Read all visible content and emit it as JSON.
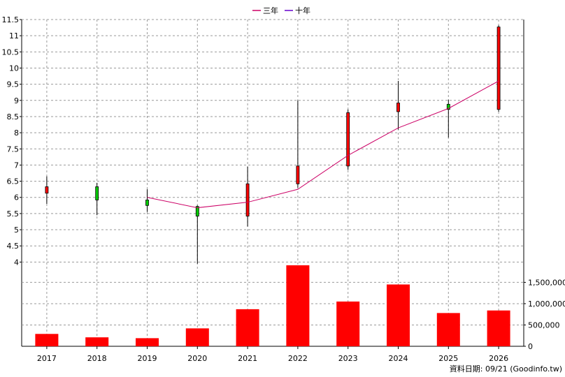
{
  "chart_data": {
    "type": "candlestick+line+bar",
    "legend": [
      {
        "name": "三年",
        "color": "#cc0066"
      },
      {
        "name": "十年",
        "color": "#6600cc"
      }
    ],
    "legend_position": "top-center",
    "grid": true,
    "categories": [
      "2017",
      "2018",
      "2019",
      "2020",
      "2021",
      "2022",
      "2023",
      "2024",
      "2025",
      "2026"
    ],
    "price_axis": {
      "ylim": [
        3.9,
        11.5
      ],
      "ticks": [
        "4",
        "4.5",
        "5",
        "5.5",
        "6",
        "6.5",
        "7",
        "7.5",
        "8",
        "8.5",
        "9",
        "9.5",
        "10",
        "10.5",
        "11",
        "11.5"
      ]
    },
    "candles": [
      {
        "open": 6.13,
        "close": 6.33,
        "high": 6.65,
        "low": 5.8
      },
      {
        "open": 6.33,
        "close": 5.92,
        "high": 6.45,
        "low": 5.45
      },
      {
        "open": 5.92,
        "close": 5.75,
        "high": 6.25,
        "low": 5.55
      },
      {
        "open": 5.72,
        "close": 5.42,
        "high": 5.75,
        "low": 3.95
      },
      {
        "open": 5.42,
        "close": 6.42,
        "high": 6.95,
        "low": 5.1
      },
      {
        "open": 6.42,
        "close": 6.97,
        "high": 9.0,
        "low": 6.3
      },
      {
        "open": 6.97,
        "close": 8.62,
        "high": 8.72,
        "low": 6.85
      },
      {
        "open": 8.65,
        "close": 8.92,
        "high": 9.6,
        "low": 8.1
      },
      {
        "open": 8.88,
        "close": 8.72,
        "high": 9.02,
        "low": 7.85
      },
      {
        "open": 8.72,
        "close": 11.27,
        "high": 11.32,
        "low": 8.65
      }
    ],
    "up_color": "#ff0000",
    "down_color": "#00cc00",
    "series": [
      {
        "name": "三年",
        "values": [
          null,
          null,
          6.0,
          5.68,
          5.85,
          6.25,
          7.3,
          8.15,
          8.75,
          9.6
        ]
      }
    ],
    "volume": {
      "values": [
        290000,
        210000,
        190000,
        420000,
        870000,
        1900000,
        1050000,
        1450000,
        780000,
        840000
      ],
      "ylim": [
        0,
        1900000
      ],
      "ticks": [
        "0",
        "500,000",
        "1,000,000",
        "1,500,000"
      ],
      "color": "#ff0000"
    },
    "footer": "資料日期: 09/21  (Goodinfo.tw)"
  }
}
